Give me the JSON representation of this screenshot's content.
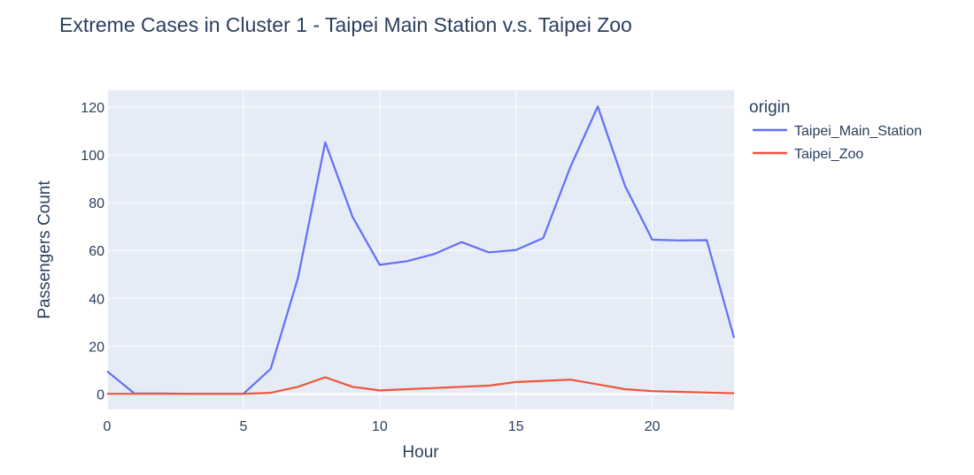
{
  "chart_data": {
    "type": "line",
    "title": "Extreme Cases in Cluster 1 - Taipei Main Station v.s.  Taipei Zoo",
    "xlabel": "Hour",
    "ylabel": "Passengers Count",
    "x": [
      0,
      1,
      2,
      3,
      4,
      5,
      6,
      7,
      8,
      9,
      10,
      11,
      12,
      13,
      14,
      15,
      16,
      17,
      18,
      19,
      20,
      21,
      22,
      23
    ],
    "xlim": [
      0,
      23
    ],
    "ylim": [
      -6.5,
      127
    ],
    "x_ticks": [
      0,
      5,
      10,
      15,
      20
    ],
    "y_ticks": [
      0,
      20,
      40,
      60,
      80,
      100,
      120
    ],
    "grid": true,
    "plot_background": "#e5ecf6",
    "legend": {
      "title": "origin",
      "position": "top-right outside"
    },
    "series": [
      {
        "name": "Taipei_Main_Station",
        "color": "#636efa",
        "values": [
          9.5,
          0.2,
          0.2,
          0.1,
          0.1,
          0.1,
          10.5,
          48.5,
          105.2,
          74.2,
          54,
          55.5,
          58.5,
          63.5,
          59.2,
          60.2,
          65.2,
          95,
          120.2,
          87,
          64.5,
          64.2,
          64.3,
          23.5
        ]
      },
      {
        "name": "Taipei_Zoo",
        "color": "#ef553b",
        "values": [
          0.1,
          0.1,
          0.1,
          0.1,
          0.1,
          0.1,
          0.5,
          3,
          7,
          3,
          1.5,
          2,
          2.5,
          3,
          3.5,
          5,
          5.5,
          6,
          4,
          2,
          1.2,
          0.9,
          0.6,
          0.3
        ]
      }
    ]
  }
}
